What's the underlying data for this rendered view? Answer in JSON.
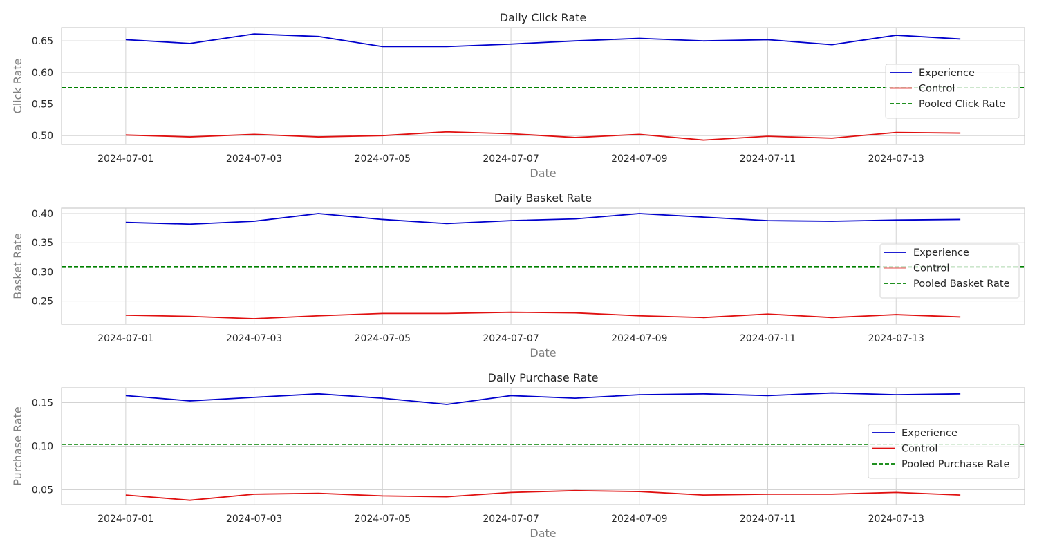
{
  "colors": {
    "experience": "#0000cc",
    "control": "#e01010",
    "pooled": "#008000",
    "grid": "#d3d3d3",
    "spine": "#cccccc",
    "axis_label": "#808080"
  },
  "chart_data": [
    {
      "type": "line",
      "title": "Daily Click Rate",
      "xlabel": "Date",
      "ylabel": "Click Rate",
      "x": [
        "2024-07-01",
        "2024-07-02",
        "2024-07-03",
        "2024-07-04",
        "2024-07-05",
        "2024-07-06",
        "2024-07-07",
        "2024-07-08",
        "2024-07-09",
        "2024-07-10",
        "2024-07-11",
        "2024-07-12",
        "2024-07-13",
        "2024-07-14"
      ],
      "x_ticks": [
        "2024-07-01",
        "2024-07-03",
        "2024-07-05",
        "2024-07-07",
        "2024-07-09",
        "2024-07-11",
        "2024-07-13"
      ],
      "xlim": [
        "2024-06-30",
        "2024-07-15"
      ],
      "y_ticks": [
        0.5,
        0.55,
        0.6,
        0.65
      ],
      "y_tick_labels": [
        "0.50",
        "0.55",
        "0.60",
        "0.65"
      ],
      "ylim": [
        0.486,
        0.671
      ],
      "grid": true,
      "legend": "right",
      "series": [
        {
          "name": "Experience",
          "style": "solid",
          "color_key": "experience",
          "values": [
            0.652,
            0.646,
            0.661,
            0.657,
            0.641,
            0.641,
            0.645,
            0.65,
            0.654,
            0.65,
            0.652,
            0.644,
            0.659,
            0.653
          ]
        },
        {
          "name": "Control",
          "style": "solid",
          "color_key": "control",
          "values": [
            0.501,
            0.498,
            0.502,
            0.498,
            0.5,
            0.506,
            0.503,
            0.497,
            0.502,
            0.493,
            0.499,
            0.496,
            0.505,
            0.504
          ]
        }
      ],
      "reference_line": {
        "name": "Pooled Click Rate",
        "value": 0.576,
        "style": "dashed",
        "color_key": "pooled"
      }
    },
    {
      "type": "line",
      "title": "Daily Basket Rate",
      "xlabel": "Date",
      "ylabel": "Basket Rate",
      "x": [
        "2024-07-01",
        "2024-07-02",
        "2024-07-03",
        "2024-07-04",
        "2024-07-05",
        "2024-07-06",
        "2024-07-07",
        "2024-07-08",
        "2024-07-09",
        "2024-07-10",
        "2024-07-11",
        "2024-07-12",
        "2024-07-13",
        "2024-07-14"
      ],
      "x_ticks": [
        "2024-07-01",
        "2024-07-03",
        "2024-07-05",
        "2024-07-07",
        "2024-07-09",
        "2024-07-11",
        "2024-07-13"
      ],
      "xlim": [
        "2024-06-30",
        "2024-07-15"
      ],
      "y_ticks": [
        0.25,
        0.3,
        0.35,
        0.4
      ],
      "y_tick_labels": [
        "0.25",
        "0.30",
        "0.35",
        "0.40"
      ],
      "ylim": [
        0.2105,
        0.4095
      ],
      "grid": true,
      "legend": "right",
      "series": [
        {
          "name": "Experience",
          "style": "solid",
          "color_key": "experience",
          "values": [
            0.385,
            0.382,
            0.387,
            0.4,
            0.39,
            0.383,
            0.388,
            0.391,
            0.4,
            0.394,
            0.388,
            0.387,
            0.389,
            0.39
          ]
        },
        {
          "name": "Control",
          "style": "solid",
          "color_key": "control",
          "values": [
            0.226,
            0.224,
            0.22,
            0.225,
            0.229,
            0.229,
            0.231,
            0.23,
            0.225,
            0.222,
            0.228,
            0.222,
            0.227,
            0.223
          ]
        }
      ],
      "reference_line": {
        "name": "Pooled Basket Rate",
        "value": 0.309,
        "style": "dashed",
        "color_key": "pooled"
      }
    },
    {
      "type": "line",
      "title": "Daily Purchase Rate",
      "xlabel": "Date",
      "ylabel": "Purchase Rate",
      "x": [
        "2024-07-01",
        "2024-07-02",
        "2024-07-03",
        "2024-07-04",
        "2024-07-05",
        "2024-07-06",
        "2024-07-07",
        "2024-07-08",
        "2024-07-09",
        "2024-07-10",
        "2024-07-11",
        "2024-07-12",
        "2024-07-13",
        "2024-07-14"
      ],
      "x_ticks": [
        "2024-07-01",
        "2024-07-03",
        "2024-07-05",
        "2024-07-07",
        "2024-07-09",
        "2024-07-11",
        "2024-07-13"
      ],
      "xlim": [
        "2024-06-30",
        "2024-07-15"
      ],
      "y_ticks": [
        0.05,
        0.1,
        0.15
      ],
      "y_tick_labels": [
        "0.05",
        "0.10",
        "0.15"
      ],
      "ylim": [
        0.033,
        0.167
      ],
      "grid": true,
      "legend": "right",
      "series": [
        {
          "name": "Experience",
          "style": "solid",
          "color_key": "experience",
          "values": [
            0.158,
            0.152,
            0.156,
            0.16,
            0.155,
            0.148,
            0.158,
            0.155,
            0.159,
            0.16,
            0.158,
            0.161,
            0.159,
            0.16
          ]
        },
        {
          "name": "Control",
          "style": "solid",
          "color_key": "control",
          "values": [
            0.044,
            0.038,
            0.045,
            0.046,
            0.043,
            0.042,
            0.047,
            0.049,
            0.048,
            0.044,
            0.045,
            0.045,
            0.047,
            0.044
          ]
        }
      ],
      "reference_line": {
        "name": "Pooled Purchase Rate",
        "value": 0.102,
        "style": "dashed",
        "color_key": "pooled"
      }
    }
  ]
}
